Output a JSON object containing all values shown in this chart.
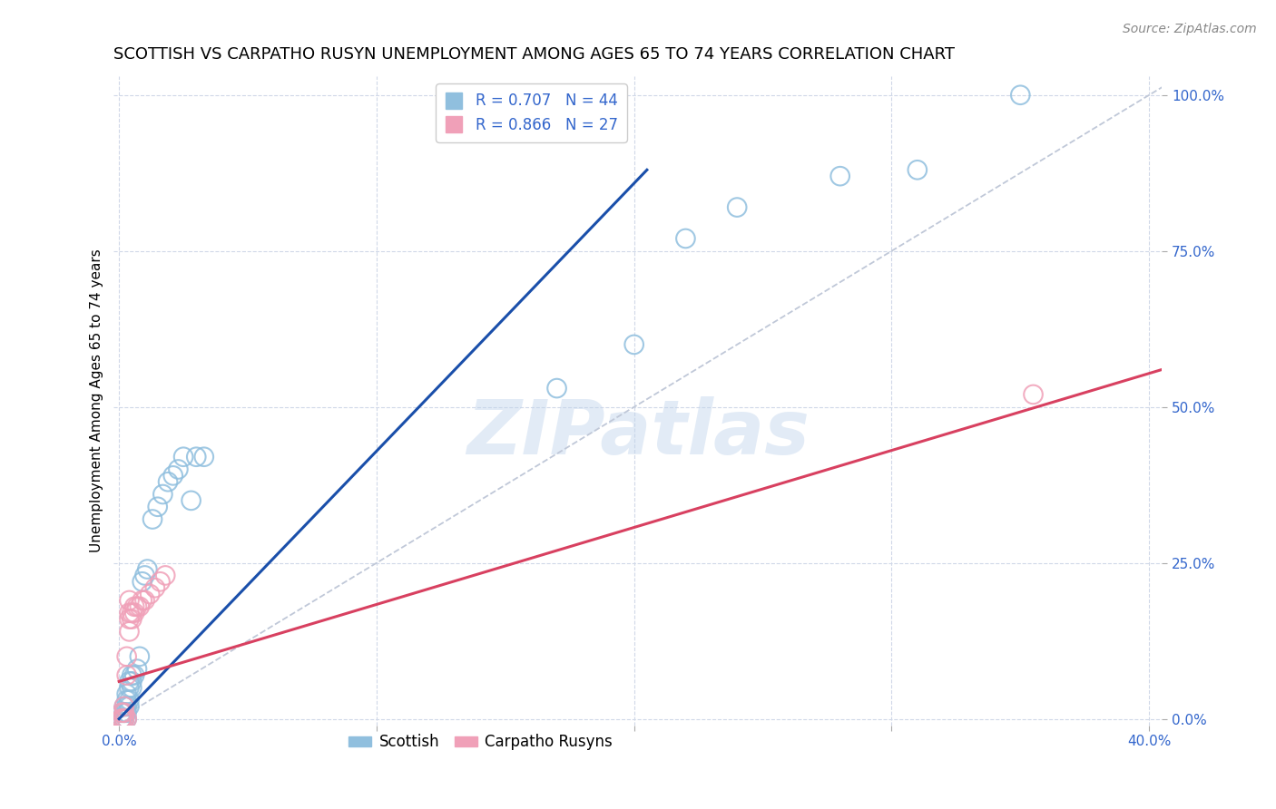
{
  "title": "SCOTTISH VS CARPATHO RUSYN UNEMPLOYMENT AMONG AGES 65 TO 74 YEARS CORRELATION CHART",
  "source": "Source: ZipAtlas.com",
  "ylabel": "Unemployment Among Ages 65 to 74 years",
  "xlim": [
    -0.002,
    0.405
  ],
  "ylim": [
    -0.01,
    1.03
  ],
  "xticks": [
    0.0,
    0.1,
    0.2,
    0.3,
    0.4
  ],
  "xticklabels": [
    "0.0%",
    "",
    "",
    "",
    "40.0%"
  ],
  "yticks": [
    0.0,
    0.25,
    0.5,
    0.75,
    1.0
  ],
  "yticklabels": [
    "0.0%",
    "25.0%",
    "50.0%",
    "75.0%",
    "100.0%"
  ],
  "scottish_color": "#90bfde",
  "carpatho_color": "#f0a0b8",
  "scottish_edge_color": "#6090c0",
  "carpatho_edge_color": "#d07090",
  "scottish_line_color": "#1a4faa",
  "carpatho_line_color": "#d84060",
  "diagonal_color": "#c0c8d8",
  "R_scottish": 0.707,
  "N_scottish": 44,
  "R_carpatho": 0.866,
  "N_carpatho": 27,
  "scottish_x": [
    0.001,
    0.001,
    0.001,
    0.001,
    0.002,
    0.002,
    0.002,
    0.002,
    0.002,
    0.003,
    0.003,
    0.003,
    0.003,
    0.003,
    0.004,
    0.004,
    0.004,
    0.004,
    0.005,
    0.005,
    0.005,
    0.006,
    0.007,
    0.008,
    0.009,
    0.01,
    0.011,
    0.013,
    0.015,
    0.017,
    0.019,
    0.021,
    0.023,
    0.025,
    0.028,
    0.03,
    0.033,
    0.17,
    0.2,
    0.22,
    0.24,
    0.28,
    0.31,
    0.35
  ],
  "scottish_y": [
    0.0,
    0.0,
    0.0,
    0.01,
    0.0,
    0.0,
    0.01,
    0.01,
    0.02,
    0.0,
    0.01,
    0.02,
    0.03,
    0.04,
    0.02,
    0.03,
    0.05,
    0.06,
    0.05,
    0.06,
    0.07,
    0.07,
    0.08,
    0.1,
    0.22,
    0.23,
    0.24,
    0.32,
    0.34,
    0.36,
    0.38,
    0.39,
    0.4,
    0.42,
    0.35,
    0.42,
    0.42,
    0.53,
    0.6,
    0.77,
    0.82,
    0.87,
    0.88,
    1.0
  ],
  "carpatho_x": [
    0.001,
    0.001,
    0.001,
    0.002,
    0.002,
    0.002,
    0.002,
    0.003,
    0.003,
    0.003,
    0.004,
    0.004,
    0.004,
    0.004,
    0.005,
    0.005,
    0.006,
    0.006,
    0.007,
    0.008,
    0.009,
    0.01,
    0.012,
    0.014,
    0.016,
    0.018,
    0.355
  ],
  "carpatho_y": [
    0.0,
    0.0,
    0.01,
    0.0,
    0.0,
    0.01,
    0.02,
    0.0,
    0.07,
    0.1,
    0.14,
    0.16,
    0.17,
    0.19,
    0.16,
    0.17,
    0.17,
    0.18,
    0.18,
    0.18,
    0.19,
    0.19,
    0.2,
    0.21,
    0.22,
    0.23,
    0.52
  ],
  "scottish_line_x": [
    0.0,
    0.205
  ],
  "scottish_line_y": [
    0.0,
    0.88
  ],
  "carpatho_line_x": [
    0.0,
    0.405
  ],
  "carpatho_line_y": [
    0.06,
    0.56
  ],
  "background_color": "#ffffff",
  "grid_color": "#d0d8e8",
  "title_fontsize": 13,
  "axis_label_fontsize": 11,
  "tick_fontsize": 11,
  "legend_fontsize": 12,
  "watermark_text": "ZIPatlas",
  "watermark_color": "#c0d4ec",
  "watermark_alpha": 0.45,
  "watermark_fontsize": 60
}
